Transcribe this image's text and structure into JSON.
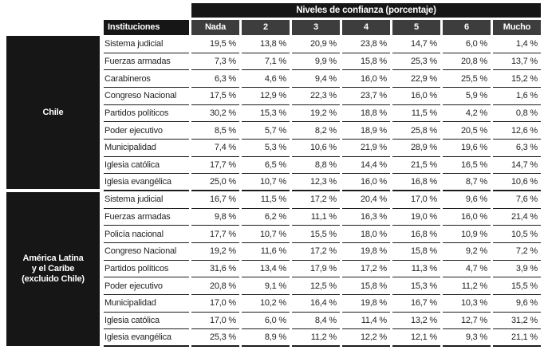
{
  "chart_data": {
    "type": "table",
    "title": "Niveles de confianza (porcentaje)",
    "row_header_label": "Instituciones",
    "columns": [
      "Nada",
      "2",
      "3",
      "4",
      "5",
      "6",
      "Mucho"
    ],
    "unit": "%",
    "decimal_separator": ",",
    "sections": [
      {
        "group": "Chile",
        "group_lines": [
          "Chile"
        ],
        "rows": [
          {
            "institution": "Sistema judicial",
            "values": [
              19.5,
              13.8,
              20.9,
              23.8,
              14.7,
              6.0,
              1.4
            ]
          },
          {
            "institution": "Fuerzas armadas",
            "values": [
              7.3,
              7.1,
              9.9,
              15.8,
              25.3,
              20.8,
              13.7
            ]
          },
          {
            "institution": "Carabineros",
            "values": [
              6.3,
              4.6,
              9.4,
              16.0,
              22.9,
              25.5,
              15.2
            ]
          },
          {
            "institution": "Congreso Nacional",
            "values": [
              17.5,
              12.9,
              22.3,
              23.7,
              16.0,
              5.9,
              1.6
            ]
          },
          {
            "institution": "Partidos políticos",
            "values": [
              30.2,
              15.3,
              19.2,
              18.8,
              11.5,
              4.2,
              0.8
            ]
          },
          {
            "institution": "Poder ejecutivo",
            "values": [
              8.5,
              5.7,
              8.2,
              18.9,
              25.8,
              20.5,
              12.6
            ]
          },
          {
            "institution": "Municipalidad",
            "values": [
              7.4,
              5.3,
              10.6,
              21.9,
              28.9,
              19.6,
              6.3
            ]
          },
          {
            "institution": "Iglesia católica",
            "values": [
              17.7,
              6.5,
              8.8,
              14.4,
              21.5,
              16.5,
              14.7
            ]
          },
          {
            "institution": "Iglesia evangélica",
            "values": [
              25.0,
              10.7,
              12.3,
              16.0,
              16.8,
              8.7,
              10.6
            ]
          }
        ]
      },
      {
        "group": "América Latina y el Caribe (excluido Chile)",
        "group_lines": [
          "América Latina",
          "y el Caribe",
          "(excluido Chile)"
        ],
        "rows": [
          {
            "institution": "Sistema judicial",
            "values": [
              16.7,
              11.5,
              17.2,
              20.4,
              17.0,
              9.6,
              7.6
            ]
          },
          {
            "institution": "Fuerzas armadas",
            "values": [
              9.8,
              6.2,
              11.1,
              16.3,
              19.0,
              16.0,
              21.4
            ]
          },
          {
            "institution": "Policía nacional",
            "values": [
              17.7,
              10.7,
              15.5,
              18.0,
              16.8,
              10.9,
              10.5
            ]
          },
          {
            "institution": "Congreso Nacional",
            "values": [
              19.2,
              11.6,
              17.2,
              19.8,
              15.8,
              9.2,
              7.2
            ]
          },
          {
            "institution": "Partidos políticos",
            "values": [
              31.6,
              13.4,
              17.9,
              17.2,
              11.3,
              4.7,
              3.9
            ]
          },
          {
            "institution": "Poder ejecutivo",
            "values": [
              20.8,
              9.1,
              12.5,
              15.8,
              15.3,
              11.2,
              15.5
            ]
          },
          {
            "institution": "Municipalidad",
            "values": [
              17.0,
              10.2,
              16.4,
              19.8,
              16.7,
              10.3,
              9.6
            ]
          },
          {
            "institution": "Iglesia católica",
            "values": [
              17.0,
              6.0,
              8.4,
              11.4,
              13.2,
              12.7,
              31.2
            ]
          },
          {
            "institution": "Iglesia evangélica",
            "values": [
              25.3,
              8.9,
              11.2,
              12.2,
              12.1,
              9.3,
              21.1
            ]
          }
        ]
      }
    ]
  },
  "colors": {
    "header_black": "#161616",
    "subheader_gray": "#3d3d3d",
    "row_line": "#1c1c1c",
    "text": "#231f20",
    "background": "#ffffff"
  }
}
